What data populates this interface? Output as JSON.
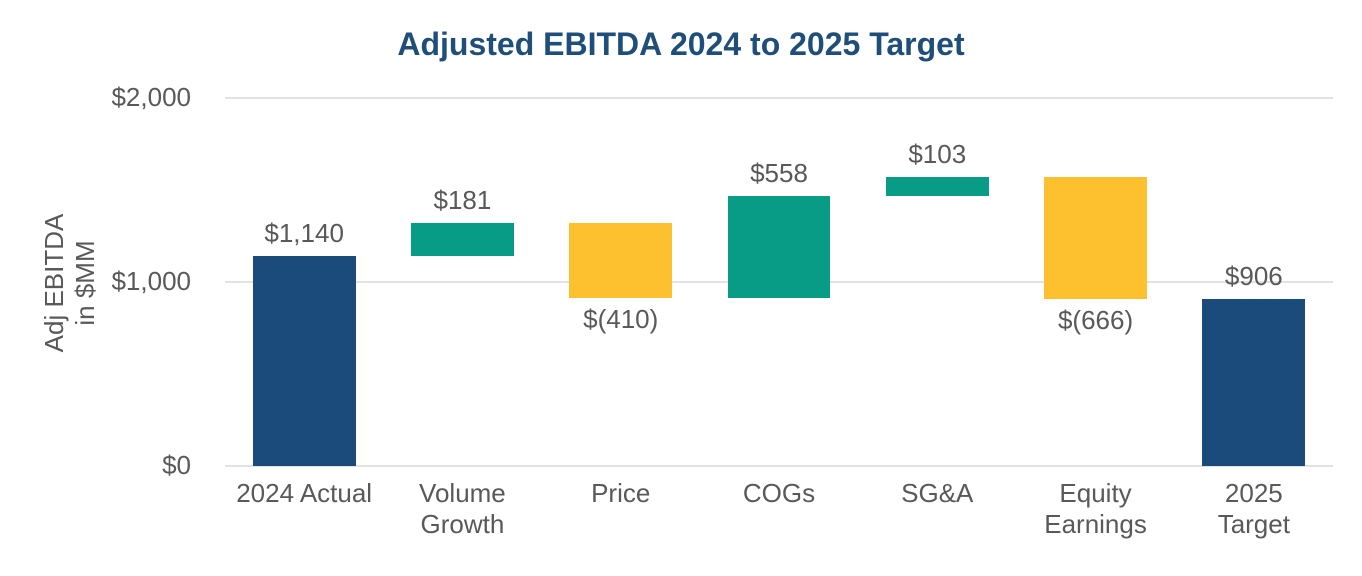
{
  "chart_data": {
    "type": "bar",
    "subtype": "waterfall",
    "title": "Adjusted EBITDA 2024 to 2025 Target",
    "ylabel": "Adj EBITDA in $MM",
    "ylabel_lines": [
      "Adj EBITDA",
      "in $MM"
    ],
    "xlabel": "",
    "ylim": [
      0,
      2000
    ],
    "yticks": [
      {
        "value": 0,
        "label": "$0"
      },
      {
        "value": 1000,
        "label": "$1,000"
      },
      {
        "value": 2000,
        "label": "$2,000"
      }
    ],
    "grid": "horizontal",
    "legend": "none",
    "categories": [
      "2024 Actual",
      "Volume Growth",
      "Price",
      "COGs",
      "SG&A",
      "Equity Earnings",
      "2025 Target"
    ],
    "values": [
      1140,
      181,
      -410,
      558,
      103,
      -666,
      906
    ],
    "bars": [
      {
        "category_lines": [
          "2024 Actual"
        ],
        "label": "$1,140",
        "value": 1140,
        "base": 0,
        "top": 1140,
        "role": "total",
        "label_position": "above"
      },
      {
        "category_lines": [
          "Volume",
          "Growth"
        ],
        "label": "$181",
        "value": 181,
        "base": 1140,
        "top": 1321,
        "role": "increase",
        "label_position": "above"
      },
      {
        "category_lines": [
          "Price"
        ],
        "label": "$(410)",
        "value": -410,
        "base": 911,
        "top": 1321,
        "role": "decrease",
        "label_position": "below"
      },
      {
        "category_lines": [
          "COGs"
        ],
        "label": "$558",
        "value": 558,
        "base": 911,
        "top": 1469,
        "role": "increase",
        "label_position": "above"
      },
      {
        "category_lines": [
          "SG&A"
        ],
        "label": "$103",
        "value": 103,
        "base": 1469,
        "top": 1572,
        "role": "increase",
        "label_position": "above"
      },
      {
        "category_lines": [
          "Equity",
          "Earnings"
        ],
        "label": "$(666)",
        "value": -666,
        "base": 906,
        "top": 1572,
        "role": "decrease",
        "label_position": "below"
      },
      {
        "category_lines": [
          "2025",
          "Target"
        ],
        "label": "$906",
        "value": 906,
        "base": 0,
        "top": 906,
        "role": "total",
        "label_position": "above"
      }
    ],
    "colors": {
      "total": "#1B4B7A",
      "increase": "#089C87",
      "decrease": "#FDC130",
      "title": "#1F4E79",
      "text": "#595959",
      "gridline": "#E2E2E2",
      "background": "#FFFFFF"
    }
  }
}
